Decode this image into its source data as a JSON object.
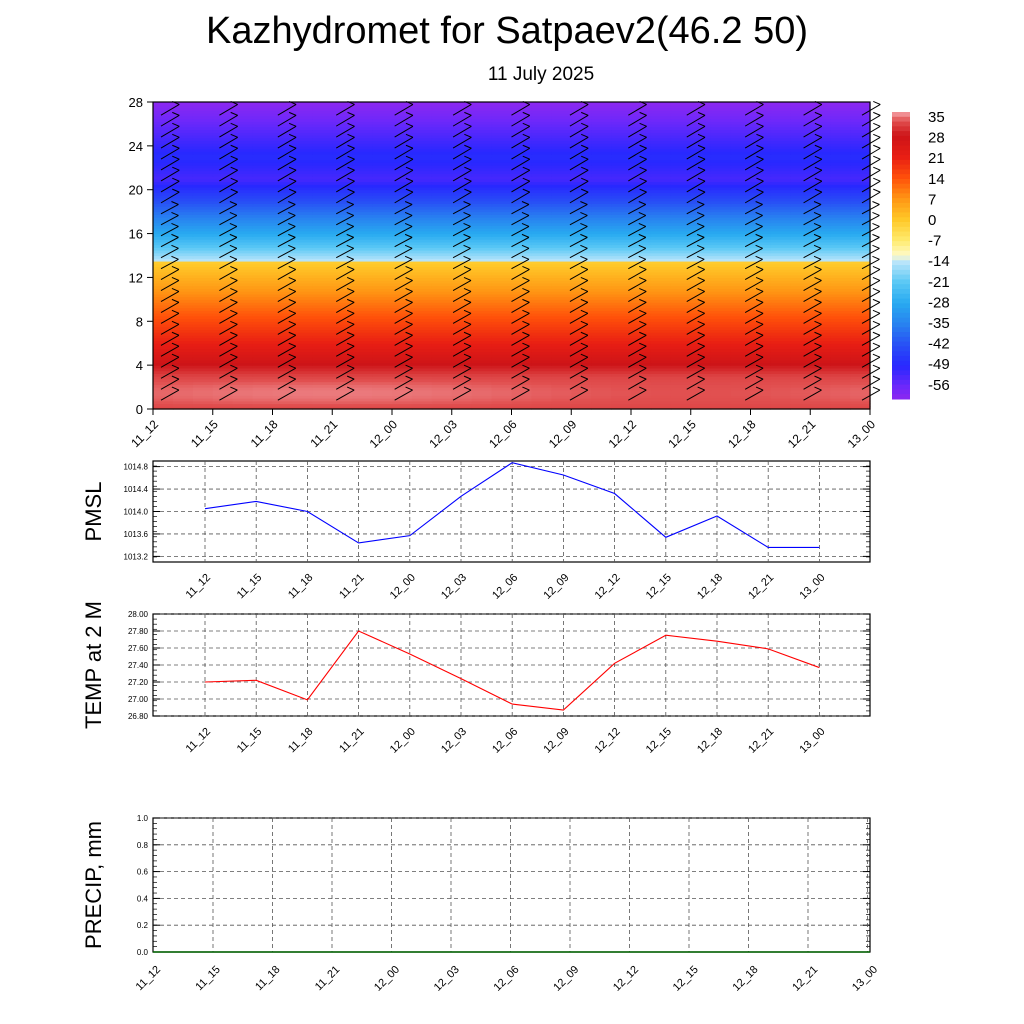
{
  "header": {
    "title": "Kazhydromet for Satpaev2(46.2 50)",
    "date": "11 July 2025"
  },
  "chart_data": [
    {
      "type": "heatmap",
      "title": "Kazhydromet for Satpaev2(46.2 50)",
      "subtitle": "11 July 2025",
      "x": [
        "11_12",
        "11_15",
        "11_18",
        "11_21",
        "12_00",
        "12_03",
        "12_06",
        "12_09",
        "12_12",
        "12_15",
        "12_18",
        "12_21",
        "13_00"
      ],
      "y_range": [
        0,
        28
      ],
      "y_ticks": [
        0,
        4,
        8,
        12,
        16,
        20,
        24,
        28
      ],
      "colorbar_labels": [
        "35",
        "28",
        "21",
        "14",
        "7",
        "0",
        "-7",
        "-14",
        "-21",
        "-28",
        "-35",
        "-42",
        "-49",
        "-56"
      ],
      "colorbar_range": [
        -60,
        36
      ],
      "colors": {
        "min": "#8B2BF0",
        "mid": "#FFEE80",
        "max": "#D4161A"
      }
    },
    {
      "type": "line",
      "ylabel": "PMSL",
      "x": [
        "11_12",
        "11_15",
        "11_18",
        "11_21",
        "12_00",
        "12_03",
        "12_06",
        "12_09",
        "12_12",
        "12_15",
        "12_18",
        "12_21",
        "13_00"
      ],
      "values": [
        1014.05,
        1014.18,
        1014.0,
        1013.44,
        1013.57,
        1014.27,
        1014.87,
        1014.65,
        1014.32,
        1013.54,
        1013.92,
        1013.36,
        1013.36
      ],
      "ylim": [
        1013.1,
        1014.9
      ],
      "y_ticks": [
        "1013.2",
        "1013.6",
        "1014.0",
        "1014.4",
        "1014.8"
      ],
      "color": "#0000ff"
    },
    {
      "type": "line",
      "ylabel": "TEMP at 2 M",
      "x": [
        "11_12",
        "11_15",
        "11_18",
        "11_21",
        "12_00",
        "12_03",
        "12_06",
        "12_09",
        "12_12",
        "12_15",
        "12_18",
        "12_21",
        "13_00"
      ],
      "values": [
        27.2,
        27.22,
        26.99,
        27.8,
        27.53,
        27.24,
        26.94,
        26.87,
        27.42,
        27.75,
        27.68,
        27.59,
        27.37
      ],
      "ylim": [
        26.8,
        28.0
      ],
      "y_ticks": [
        "26.80",
        "27.00",
        "27.20",
        "27.40",
        "27.60",
        "27.80",
        "28.00"
      ],
      "color": "#ff0000"
    },
    {
      "type": "line",
      "ylabel": "PRECIP, mm",
      "x": [
        "11_12",
        "11_15",
        "11_18",
        "11_21",
        "12_00",
        "12_03",
        "12_06",
        "12_09",
        "12_12",
        "12_15",
        "12_18",
        "12_21",
        "13_00"
      ],
      "values": [
        0,
        0,
        0,
        0,
        0,
        0,
        0,
        0,
        0,
        0,
        0,
        0,
        0
      ],
      "ylim": [
        0,
        1.0
      ],
      "y_ticks": [
        "0.0",
        "0.2",
        "0.4",
        "0.6",
        "0.8",
        "1.0"
      ],
      "color": "#006400"
    }
  ]
}
